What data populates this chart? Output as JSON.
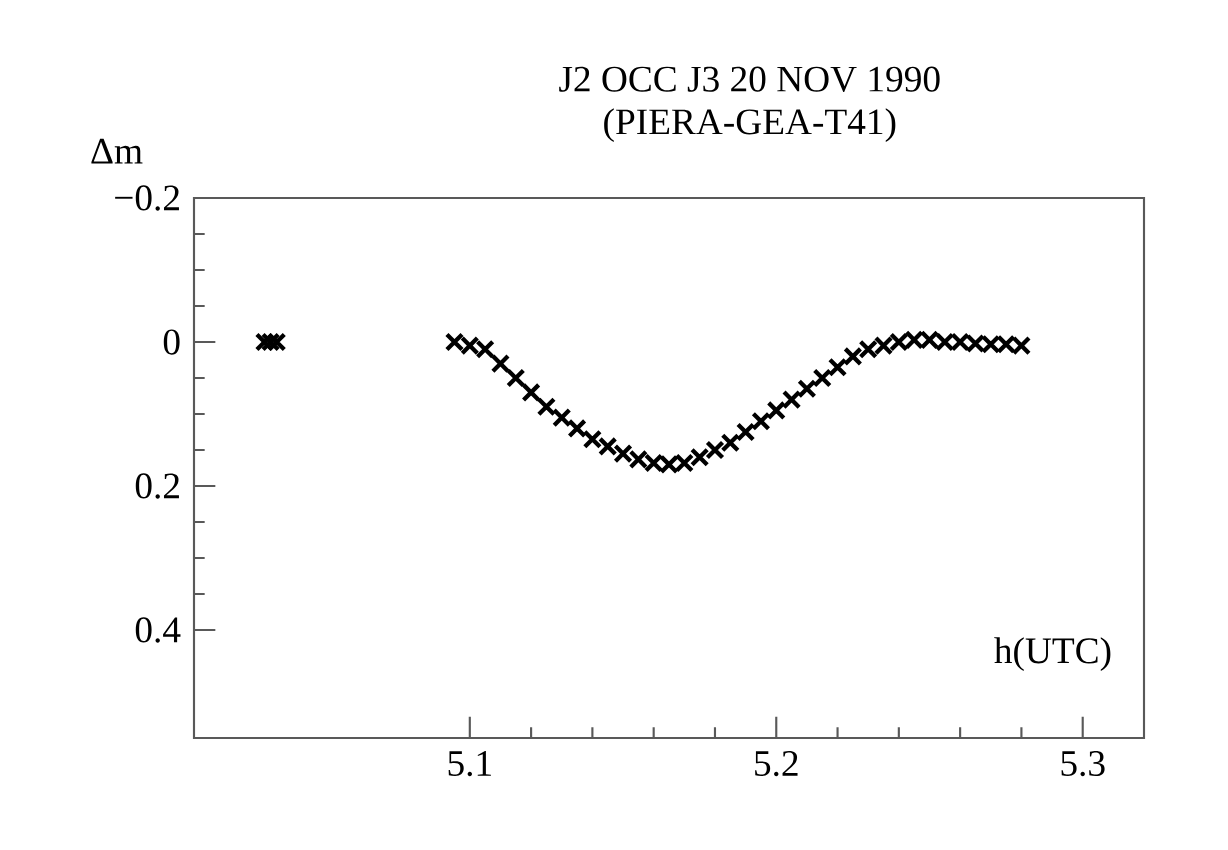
{
  "chart_data": {
    "type": "scatter",
    "title": "J2 OCC J3 20 NOV 1990",
    "subtitle": "(PIERA-GEA-T41)",
    "xlabel": "h(UTC)",
    "ylabel": "Δm",
    "x": [
      5.033,
      5.035,
      5.037,
      5.095,
      5.1,
      5.105,
      5.11,
      5.115,
      5.12,
      5.125,
      5.13,
      5.135,
      5.14,
      5.145,
      5.15,
      5.155,
      5.16,
      5.165,
      5.17,
      5.175,
      5.18,
      5.185,
      5.19,
      5.195,
      5.2,
      5.205,
      5.21,
      5.215,
      5.22,
      5.225,
      5.23,
      5.235,
      5.24,
      5.245,
      5.25,
      5.255,
      5.26,
      5.265,
      5.27,
      5.275,
      5.28
    ],
    "values": [
      0,
      0,
      0,
      0,
      0.005,
      0.01,
      0.03,
      0.05,
      0.07,
      0.09,
      0.105,
      0.12,
      0.135,
      0.145,
      0.155,
      0.163,
      0.168,
      0.17,
      0.168,
      0.16,
      0.15,
      0.14,
      0.125,
      0.11,
      0.095,
      0.08,
      0.065,
      0.05,
      0.035,
      0.02,
      0.01,
      0.005,
      0,
      -0.003,
      -0.003,
      0,
      0,
      0.002,
      0.003,
      0.003,
      0.005
    ],
    "color": "#000000",
    "marker": "cross",
    "xlim": [
      5.01,
      5.32
    ],
    "ylim": [
      0.55,
      -0.2
    ],
    "xticks": [
      5.1,
      5.2,
      5.3
    ],
    "yticks": [
      {
        "value": -0.2,
        "label": "−0.2"
      },
      0,
      0.2,
      0.4
    ]
  }
}
